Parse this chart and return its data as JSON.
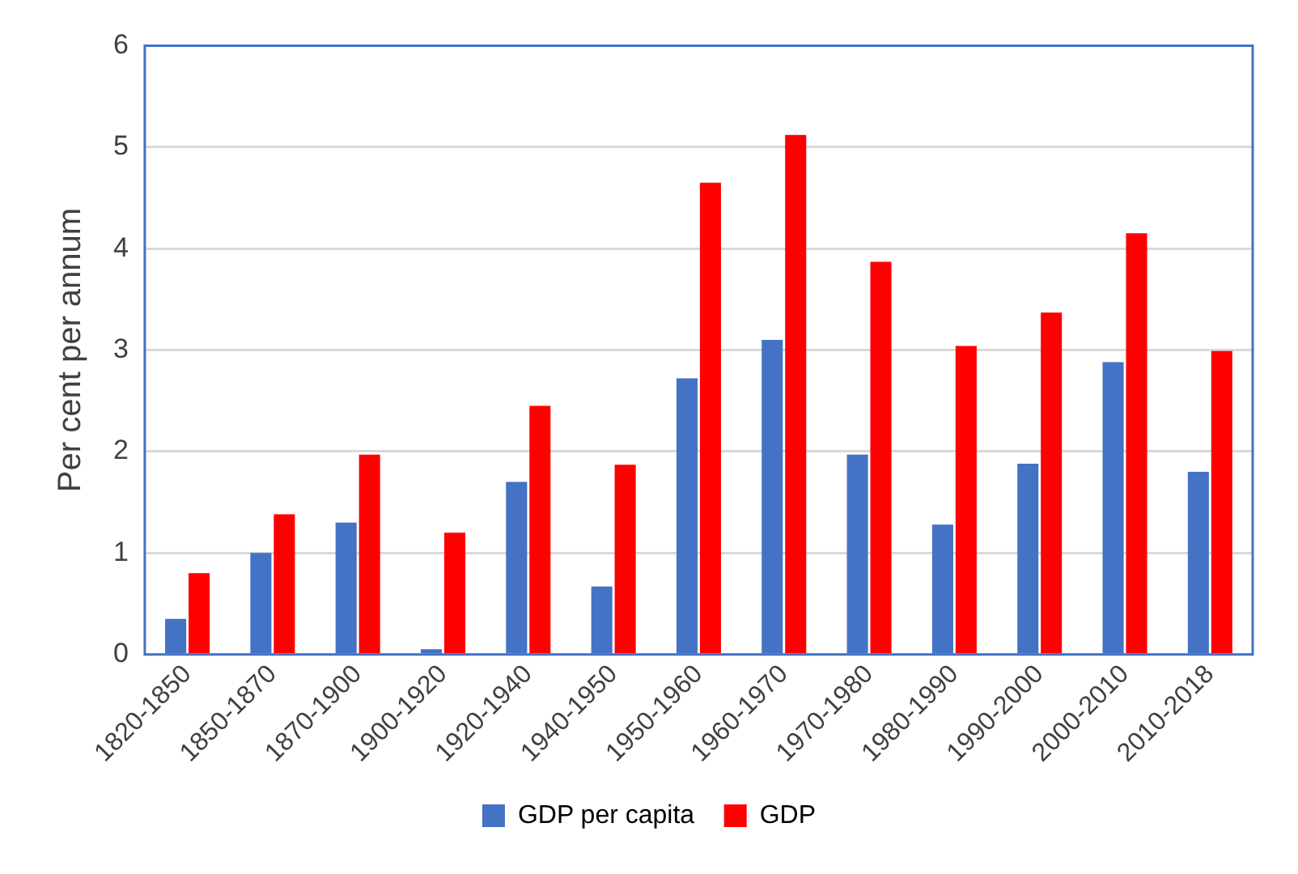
{
  "chart_data": {
    "type": "bar",
    "ylabel": "Per cent per annum",
    "categories": [
      "1820-1850",
      "1850-1870",
      "1870-1900",
      "1900-1920",
      "1920-1940",
      "1940-1950",
      "1950-1960",
      "1960-1970",
      "1970-1980",
      "1980-1990",
      "1990-2000",
      "2000-2010",
      "2010-2018"
    ],
    "series": [
      {
        "name": "GDP per capita",
        "color": "#4472c4",
        "values": [
          0.35,
          1.0,
          1.3,
          0.05,
          1.7,
          0.67,
          2.72,
          3.1,
          1.97,
          1.28,
          1.88,
          2.88,
          1.8
        ]
      },
      {
        "name": "GDP",
        "color": "#ff0000",
        "values": [
          0.8,
          1.38,
          1.97,
          1.2,
          2.45,
          1.87,
          4.65,
          5.12,
          3.87,
          3.04,
          3.37,
          4.15,
          2.99
        ]
      }
    ],
    "ylim": [
      0,
      6
    ],
    "yticks": [
      0,
      1,
      2,
      3,
      4,
      5,
      6
    ],
    "grid": "y",
    "legend": "bottom"
  }
}
